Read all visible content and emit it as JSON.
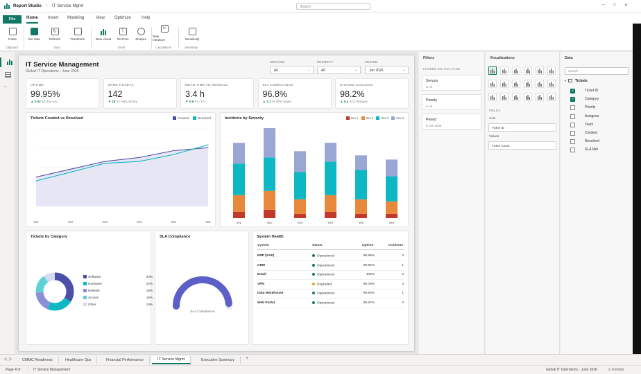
{
  "app": {
    "name": "Report Studio",
    "doc": "IT Service Mgmt",
    "search_placeholder": "Search",
    "win_min": "–",
    "win_max": "□",
    "win_close": "✕"
  },
  "ribbon": {
    "tabs": [
      "File",
      "Home",
      "Insert",
      "Modeling",
      "View",
      "Optimize",
      "Help"
    ],
    "buttons": [
      "Paste",
      "Get data",
      "Refresh",
      "Transform",
      "New visual",
      "Text box",
      "Shapes",
      "New measure",
      "Sensitivity"
    ],
    "groups": [
      "Clipboard",
      "Data",
      "Insert",
      "Calculations",
      "Sensitivity"
    ]
  },
  "report": {
    "title": "IT Service Management",
    "subtitle": "Global IT Operations · June 2026",
    "slicers": [
      {
        "label": "SERVICE",
        "value": "All"
      },
      {
        "label": "PRIORITY",
        "value": "All"
      },
      {
        "label": "PERIOD",
        "value": "Jun 2026"
      }
    ],
    "kpis": [
      {
        "title": "UPTIME",
        "value": "99.95%",
        "arrow": "▲",
        "delta": "0.02",
        "note": "30-day avg",
        "color": "#117865"
      },
      {
        "title": "OPEN TICKETS",
        "value": "142",
        "arrow": "▼",
        "delta": "18",
        "note": "23 high priority",
        "color": "#117865"
      },
      {
        "title": "MEAN TIME TO RESOLVE",
        "value": "3.4 h",
        "arrow": "▼",
        "delta": "0.6",
        "note": "P1 / P2",
        "color": "#117865"
      },
      {
        "title": "SLA COMPLIANCE",
        "value": "96.8%",
        "arrow": "▲",
        "delta": "1.1",
        "note": "vs 95% target",
        "color": "#117865"
      },
      {
        "title": "CHANGE SUCCESS",
        "value": "98.2%",
        "arrow": "▲",
        "delta": "0.4",
        "note": "542 changes",
        "color": "#117865"
      }
    ],
    "line_title": "Tickets Created vs Resolved",
    "bar_title": "Incidents by Severity",
    "donut_title": "Tickets by Category",
    "gauge_title": "SLA Compliance",
    "gauge_label": "SLA Compliance",
    "health_title": "System Health",
    "health_cols": [
      "System",
      "Status",
      "Uptime",
      "Incidents"
    ],
    "health_rows": [
      {
        "system": "ERP (SAP)",
        "status": "Operational",
        "uptime": "99.98%",
        "incidents": "2",
        "color": "#117865"
      },
      {
        "system": "CRM",
        "status": "Operational",
        "uptime": "99.95%",
        "incidents": "1",
        "color": "#117865"
      },
      {
        "system": "Email",
        "status": "Operational",
        "uptime": "100%",
        "incidents": "0",
        "color": "#117865"
      },
      {
        "system": "VPN",
        "status": "Degraded",
        "uptime": "99.40%",
        "incidents": "4",
        "color": "#e5a520"
      },
      {
        "system": "Data Warehouse",
        "status": "Operational",
        "uptime": "99.90%",
        "incidents": "1",
        "color": "#117865"
      },
      {
        "system": "Web Portal",
        "status": "Operational",
        "uptime": "99.97%",
        "incidents": "2",
        "color": "#117865"
      }
    ]
  },
  "chart_data": [
    {
      "type": "line",
      "title": "Tickets Created vs Resolved",
      "x": [
        "W1",
        "W2",
        "W3",
        "W4",
        "W5",
        "W6"
      ],
      "series": [
        {
          "name": "Created",
          "values": [
            30,
            38,
            46,
            50,
            57,
            60
          ],
          "color": "#4b4fa8"
        },
        {
          "name": "Resolved",
          "values": [
            26,
            35,
            44,
            46,
            53,
            63
          ],
          "color": "#0db7c4"
        }
      ],
      "ylim": [
        0,
        80
      ]
    },
    {
      "type": "bar",
      "stacked": true,
      "title": "Incidents by Severity",
      "categories": [
        "W1",
        "W2",
        "W3",
        "W4",
        "W5",
        "W6"
      ],
      "series": [
        {
          "name": "Sev 1",
          "values": [
            3,
            4,
            2,
            3,
            2,
            2
          ],
          "color": "#c0392b"
        },
        {
          "name": "Sev 2",
          "values": [
            8,
            9,
            7,
            8,
            7,
            6
          ],
          "color": "#e8883a"
        },
        {
          "name": "Sev 3",
          "values": [
            15,
            16,
            13,
            16,
            14,
            12
          ],
          "color": "#0db7c4"
        },
        {
          "name": "Sev 4",
          "values": [
            10,
            14,
            10,
            9,
            7,
            8
          ],
          "color": "#9aa6d4"
        }
      ],
      "ylim": [
        0,
        45
      ]
    },
    {
      "type": "pie",
      "title": "Tickets by Category",
      "categories": [
        "Software",
        "Hardware",
        "Network",
        "Access",
        "Other"
      ],
      "values": [
        34,
        22,
        18,
        16,
        10
      ],
      "colors": [
        "#4b4fa8",
        "#0db7c4",
        "#8a8fd6",
        "#5dd0d8",
        "#d6dbee"
      ]
    },
    {
      "type": "gauge",
      "title": "SLA Compliance",
      "value": 96.8,
      "min": 0,
      "max": 100,
      "color": "#5b5fc7"
    }
  ],
  "filters": {
    "title": "Filters",
    "section": "FILTERS ON THIS PAGE",
    "items": [
      {
        "name": "Service",
        "state": "is All"
      },
      {
        "name": "Priority",
        "state": "is All"
      },
      {
        "name": "Period",
        "state": "is Jun 2026"
      }
    ]
  },
  "viz": {
    "title": "Visualizations",
    "fields": "FIELDS",
    "axis": "Axis",
    "axis_value": "Ticket ID",
    "values": "Values",
    "values_value": "Ticket Count"
  },
  "data": {
    "title": "Data",
    "search_placeholder": "Search",
    "table": "Tickets",
    "fields": [
      {
        "name": "Ticket ID",
        "checked": true
      },
      {
        "name": "Category",
        "checked": true
      },
      {
        "name": "Priority",
        "checked": false
      },
      {
        "name": "Assignee",
        "checked": false
      },
      {
        "name": "Team",
        "checked": false
      },
      {
        "name": "Created",
        "checked": false
      },
      {
        "name": "Resolved",
        "checked": false
      },
      {
        "name": "SLA Met",
        "checked": false
      }
    ]
  },
  "sheets": [
    "CMMC Readiness",
    "Healthcare Ops",
    "Financial Performance",
    "IT Service Mgmt",
    "Executive Summary"
  ],
  "active_sheet": 3,
  "status": {
    "page": "Page 4 of",
    "page_name": "IT Service Management",
    "right": "Global IT Operations · June 2026",
    "errors": "⚠ 0 errors"
  }
}
